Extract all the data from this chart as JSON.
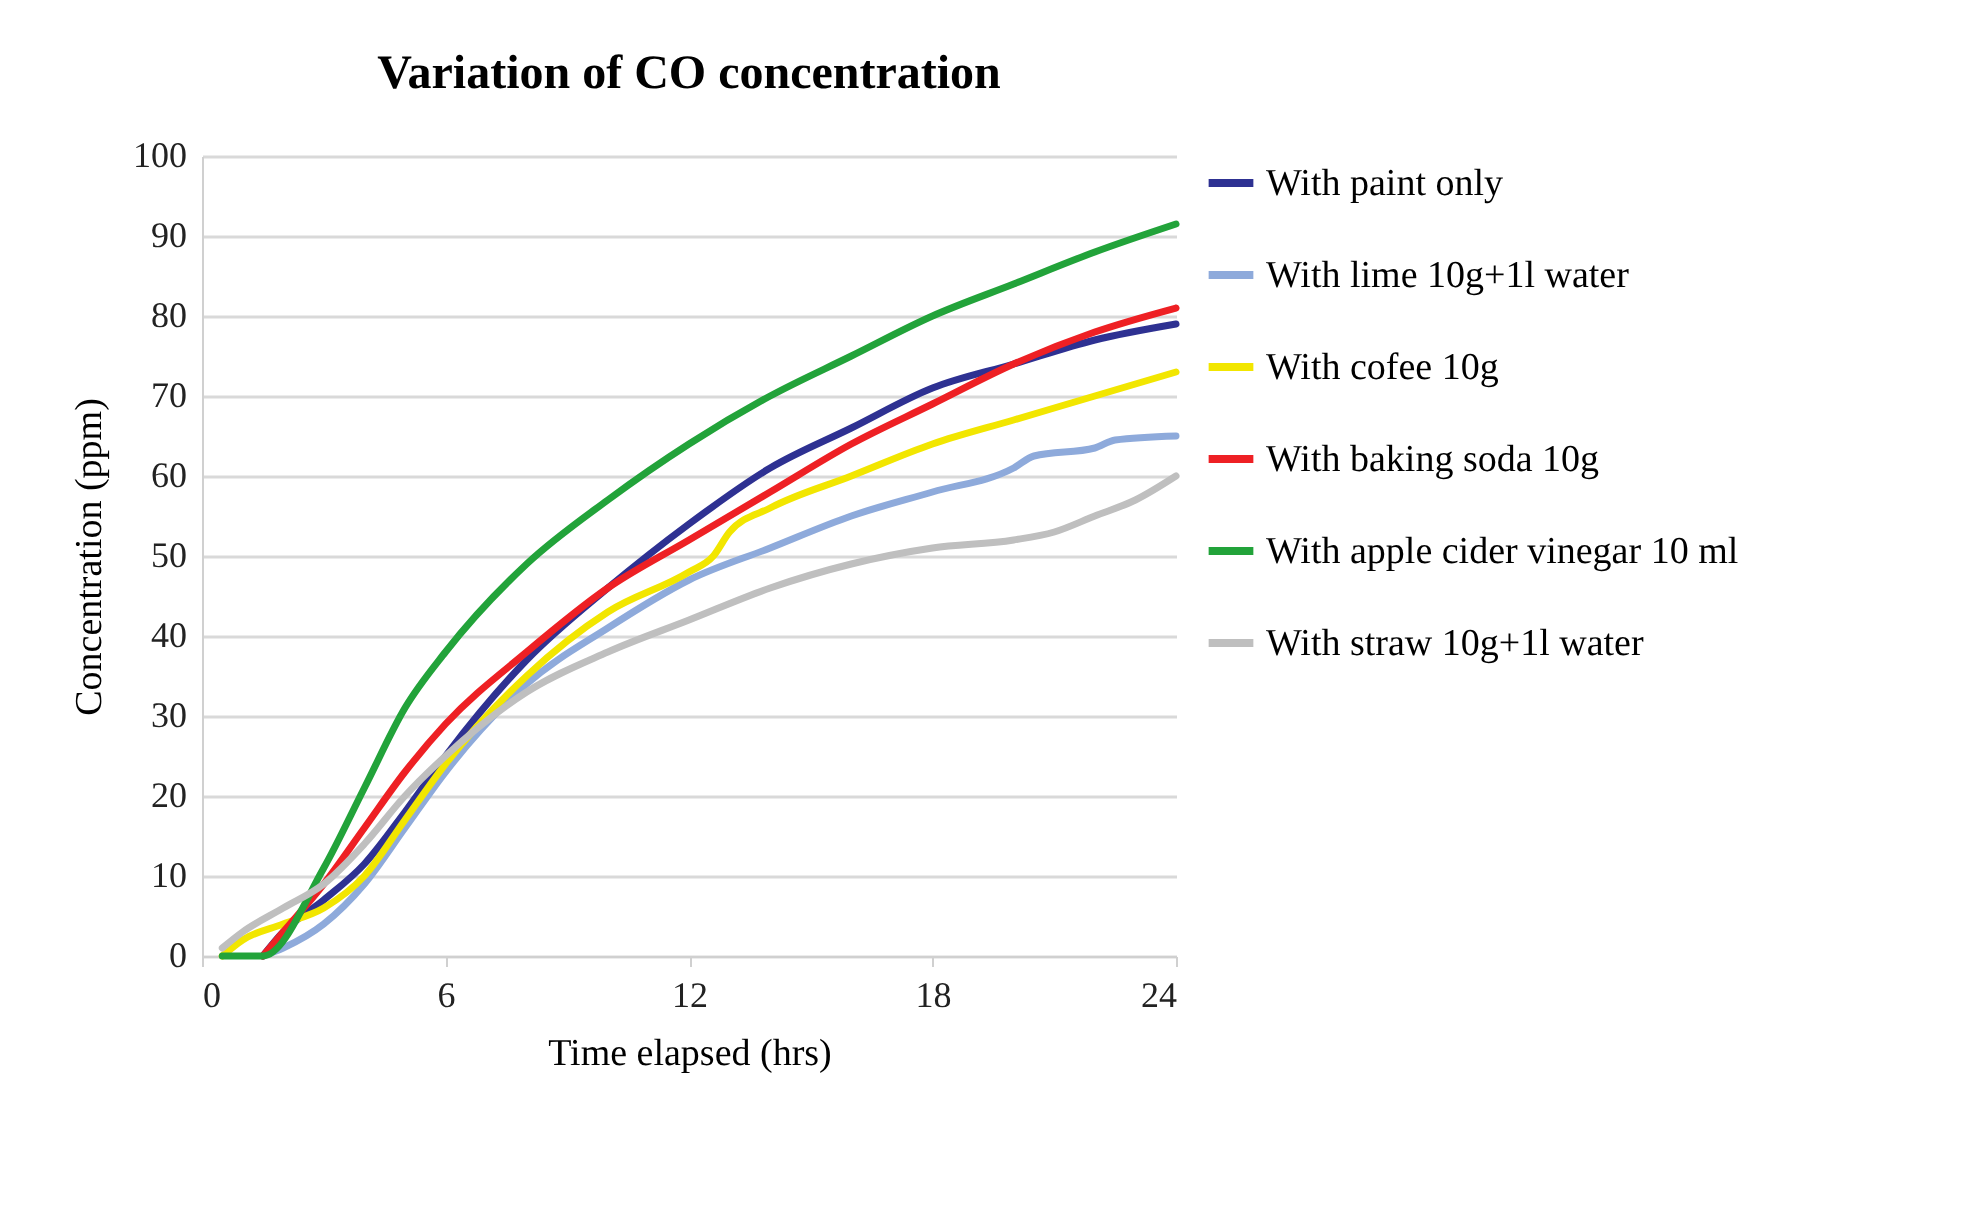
{
  "chart_data": {
    "type": "line",
    "title": "Variation of CO concentration",
    "xlabel": "Time elapsed (hrs)",
    "ylabel": "Concentration (ppm)",
    "xlim": [
      0,
      24
    ],
    "xticks": [
      0,
      6,
      12,
      18,
      24
    ],
    "ylim": [
      0,
      100
    ],
    "yticks": [
      0,
      10,
      20,
      30,
      40,
      50,
      60,
      70,
      80,
      90,
      100
    ],
    "grid": "y",
    "legend": "right",
    "marker": "none",
    "line_style": "solid",
    "series": [
      {
        "name": "With paint only",
        "color": "#2e3192",
        "x": [
          1.5,
          2,
          3,
          4,
          5,
          6,
          8,
          10,
          12,
          14,
          16,
          18,
          20,
          22,
          24
        ],
        "values": [
          0,
          3,
          7,
          11.5,
          18,
          25,
          37,
          46,
          54,
          61,
          66,
          71,
          74,
          77,
          79
        ]
      },
      {
        "name": "With lime 10g+1l water",
        "color": "#8eaadb",
        "x": [
          1.5,
          2,
          3,
          4,
          5,
          6,
          8,
          10,
          12,
          14,
          16,
          18,
          20,
          20.5,
          22,
          22.5,
          24
        ],
        "values": [
          0,
          1,
          4,
          9,
          16,
          23,
          34,
          41,
          47,
          51,
          55,
          58,
          61,
          62.5,
          63.5,
          64.5,
          65
        ]
      },
      {
        "name": "With cofee 10g",
        "color": "#f2e600",
        "x": [
          0.5,
          1,
          2,
          3,
          4,
          5,
          6,
          8,
          10,
          12,
          12.6,
          13,
          14,
          16,
          18,
          20,
          22,
          24
        ],
        "values": [
          0,
          2,
          4,
          6,
          10,
          17,
          24,
          35,
          43,
          48,
          50,
          53,
          56,
          60,
          64,
          67,
          70,
          73
        ]
      },
      {
        "name": "With baking soda 10g",
        "color": "#ee2024",
        "x": [
          1.5,
          2,
          3,
          4,
          5,
          6,
          8,
          10,
          12,
          14,
          16,
          18,
          20,
          22,
          24
        ],
        "values": [
          0,
          3,
          9,
          16,
          23,
          29,
          38,
          46,
          52,
          58,
          64,
          69,
          74,
          78,
          81
        ]
      },
      {
        "name": "With apple cider vinegar 10 ml",
        "color": "#22a33a",
        "x": [
          0.5,
          1.5,
          3,
          4,
          5,
          6,
          8,
          10,
          12,
          14,
          16,
          18,
          20,
          22,
          24
        ],
        "values": [
          0,
          0,
          11,
          21,
          31,
          38,
          49,
          57,
          64,
          70,
          75,
          80,
          84,
          88,
          91.5
        ]
      },
      {
        "name": "With straw 10g+1l water",
        "color": "#bfbfbf",
        "x": [
          0.5,
          1,
          2,
          3,
          4,
          5,
          6,
          8,
          10,
          12,
          14,
          16,
          18,
          20,
          21,
          22,
          23,
          24
        ],
        "values": [
          1,
          3,
          6,
          9,
          14,
          20,
          25,
          33,
          38,
          42,
          46,
          49,
          51,
          52,
          53,
          55,
          57,
          60
        ]
      }
    ]
  }
}
